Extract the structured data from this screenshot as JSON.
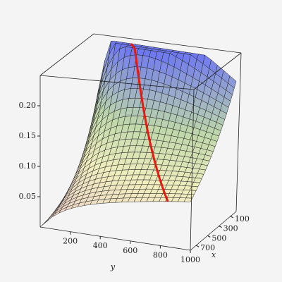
{
  "chart_data": {
    "type": "surface3d",
    "xlabel": "x",
    "ylabel": "y",
    "xlim": [
      0,
      800
    ],
    "ylim": [
      0,
      1000
    ],
    "zlim": [
      0,
      0.25
    ],
    "xticks": [
      100,
      300,
      500,
      700
    ],
    "yticks": [
      200,
      400,
      600,
      800,
      1000
    ],
    "zticks": [
      {
        "value": 0.05,
        "label": "0.05"
      },
      {
        "value": 0.1,
        "label": "0.10"
      },
      {
        "value": 0.15,
        "label": "0.15"
      },
      {
        "value": 0.2,
        "label": "0.20"
      }
    ],
    "curve_color": "#e8190f"
  }
}
